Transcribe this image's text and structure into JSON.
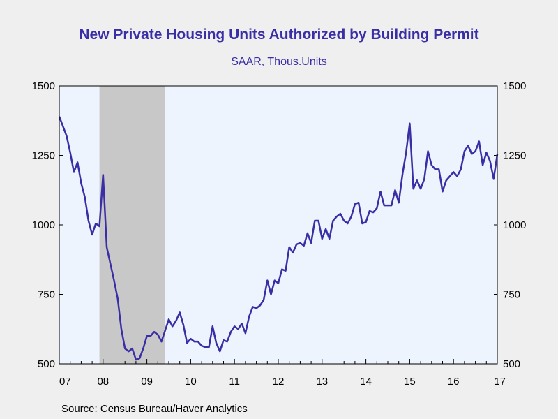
{
  "chart_data": {
    "type": "line",
    "title": "New Private Housing Units Authorized by Building Permit",
    "subtitle": "SAAR, Thous.Units",
    "source": "Source:  Census Bureau/Haver Analytics",
    "x_start": "2007-01",
    "x_end": "2017-01",
    "x_tick_labels": [
      "07",
      "08",
      "09",
      "10",
      "11",
      "12",
      "13",
      "14",
      "15",
      "16",
      "17"
    ],
    "ylim": [
      500,
      1500
    ],
    "y_ticks": [
      500,
      750,
      1000,
      1250,
      1500
    ],
    "y_tick_labels": [
      "500",
      "750",
      "1000",
      "1250",
      "1500"
    ],
    "recession_shading": {
      "start": "2007-12",
      "end": "2009-06"
    },
    "colors": {
      "line": "#3a2ea6",
      "plot_bg": "#eef4fe",
      "recession": "#c8c8c8",
      "text": "#3a2ea6"
    },
    "series": [
      {
        "start": "2007-01",
        "frequency": "monthly",
        "values": [
          1390,
          1355,
          1320,
          1260,
          1190,
          1225,
          1150,
          1100,
          1015,
          965,
          1005,
          995,
          1180,
          920,
          860,
          800,
          735,
          625,
          555,
          545,
          555,
          515,
          520,
          555,
          600,
          600,
          615,
          605,
          580,
          620,
          660,
          635,
          655,
          685,
          640,
          575,
          590,
          580,
          580,
          565,
          560,
          560,
          635,
          575,
          545,
          585,
          580,
          615,
          635,
          625,
          645,
          610,
          670,
          705,
          700,
          710,
          730,
          800,
          750,
          800,
          790,
          840,
          835,
          920,
          900,
          930,
          935,
          925,
          970,
          935,
          1015,
          1015,
          950,
          985,
          950,
          1015,
          1030,
          1040,
          1015,
          1005,
          1030,
          1075,
          1080,
          1005,
          1010,
          1050,
          1045,
          1060,
          1120,
          1070,
          1070,
          1070,
          1125,
          1080,
          1180,
          1260,
          1365,
          1130,
          1160,
          1130,
          1165,
          1265,
          1215,
          1200,
          1200,
          1120,
          1160,
          1175,
          1190,
          1175,
          1200,
          1265,
          1285,
          1255,
          1265,
          1300,
          1215,
          1260,
          1230,
          1165,
          1255
        ]
      }
    ]
  }
}
